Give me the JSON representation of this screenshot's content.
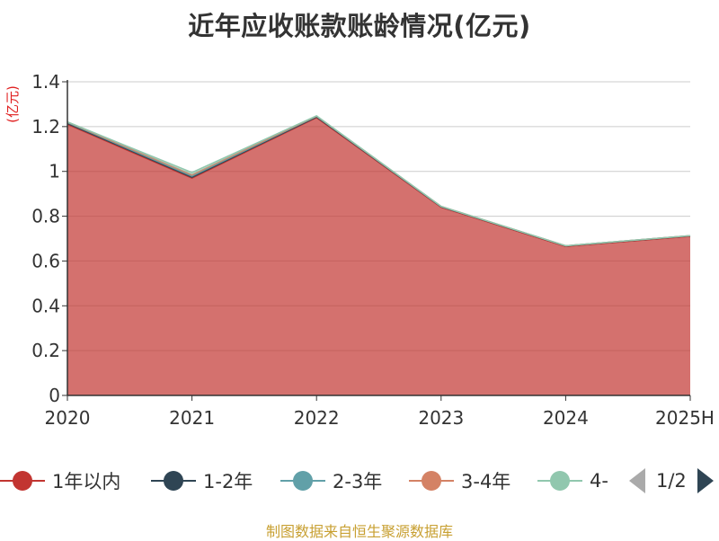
{
  "chart_data": {
    "type": "area",
    "title": "近年应收账款账龄情况(亿元)",
    "unit_label": "(亿元)",
    "categories": [
      "2020",
      "2021",
      "2022",
      "2023",
      "2024",
      "2025H"
    ],
    "ylim": [
      0,
      1.4
    ],
    "yticks": [
      "0",
      "0.2",
      "0.4",
      "0.6",
      "0.8",
      "1",
      "1.2",
      "1.4"
    ],
    "grid": true,
    "series": [
      {
        "name": "1年以内",
        "color": "#c23531",
        "values": [
          1.21,
          0.97,
          1.24,
          0.84,
          0.665,
          0.71
        ]
      },
      {
        "name": "1-2年",
        "color": "#2f4554",
        "values": [
          0.005,
          0.005,
          0.003,
          0.002,
          0.002,
          0.002
        ]
      },
      {
        "name": "2-3年",
        "color": "#61a0a8",
        "values": [
          0.003,
          0.005,
          0.003,
          0.001,
          0.001,
          0.001
        ]
      },
      {
        "name": "3-4年",
        "color": "#d48265",
        "values": [
          0.002,
          0.005,
          0.001,
          0.001,
          0.0,
          0.0
        ]
      },
      {
        "name": "4-",
        "color": "#91c7ae",
        "values": [
          0.001,
          0.01,
          0.001,
          0.0,
          0.0,
          0.0
        ]
      }
    ]
  },
  "legend": {
    "page_text": "1/2"
  },
  "source_text": "制图数据来自恒生聚源数据库"
}
